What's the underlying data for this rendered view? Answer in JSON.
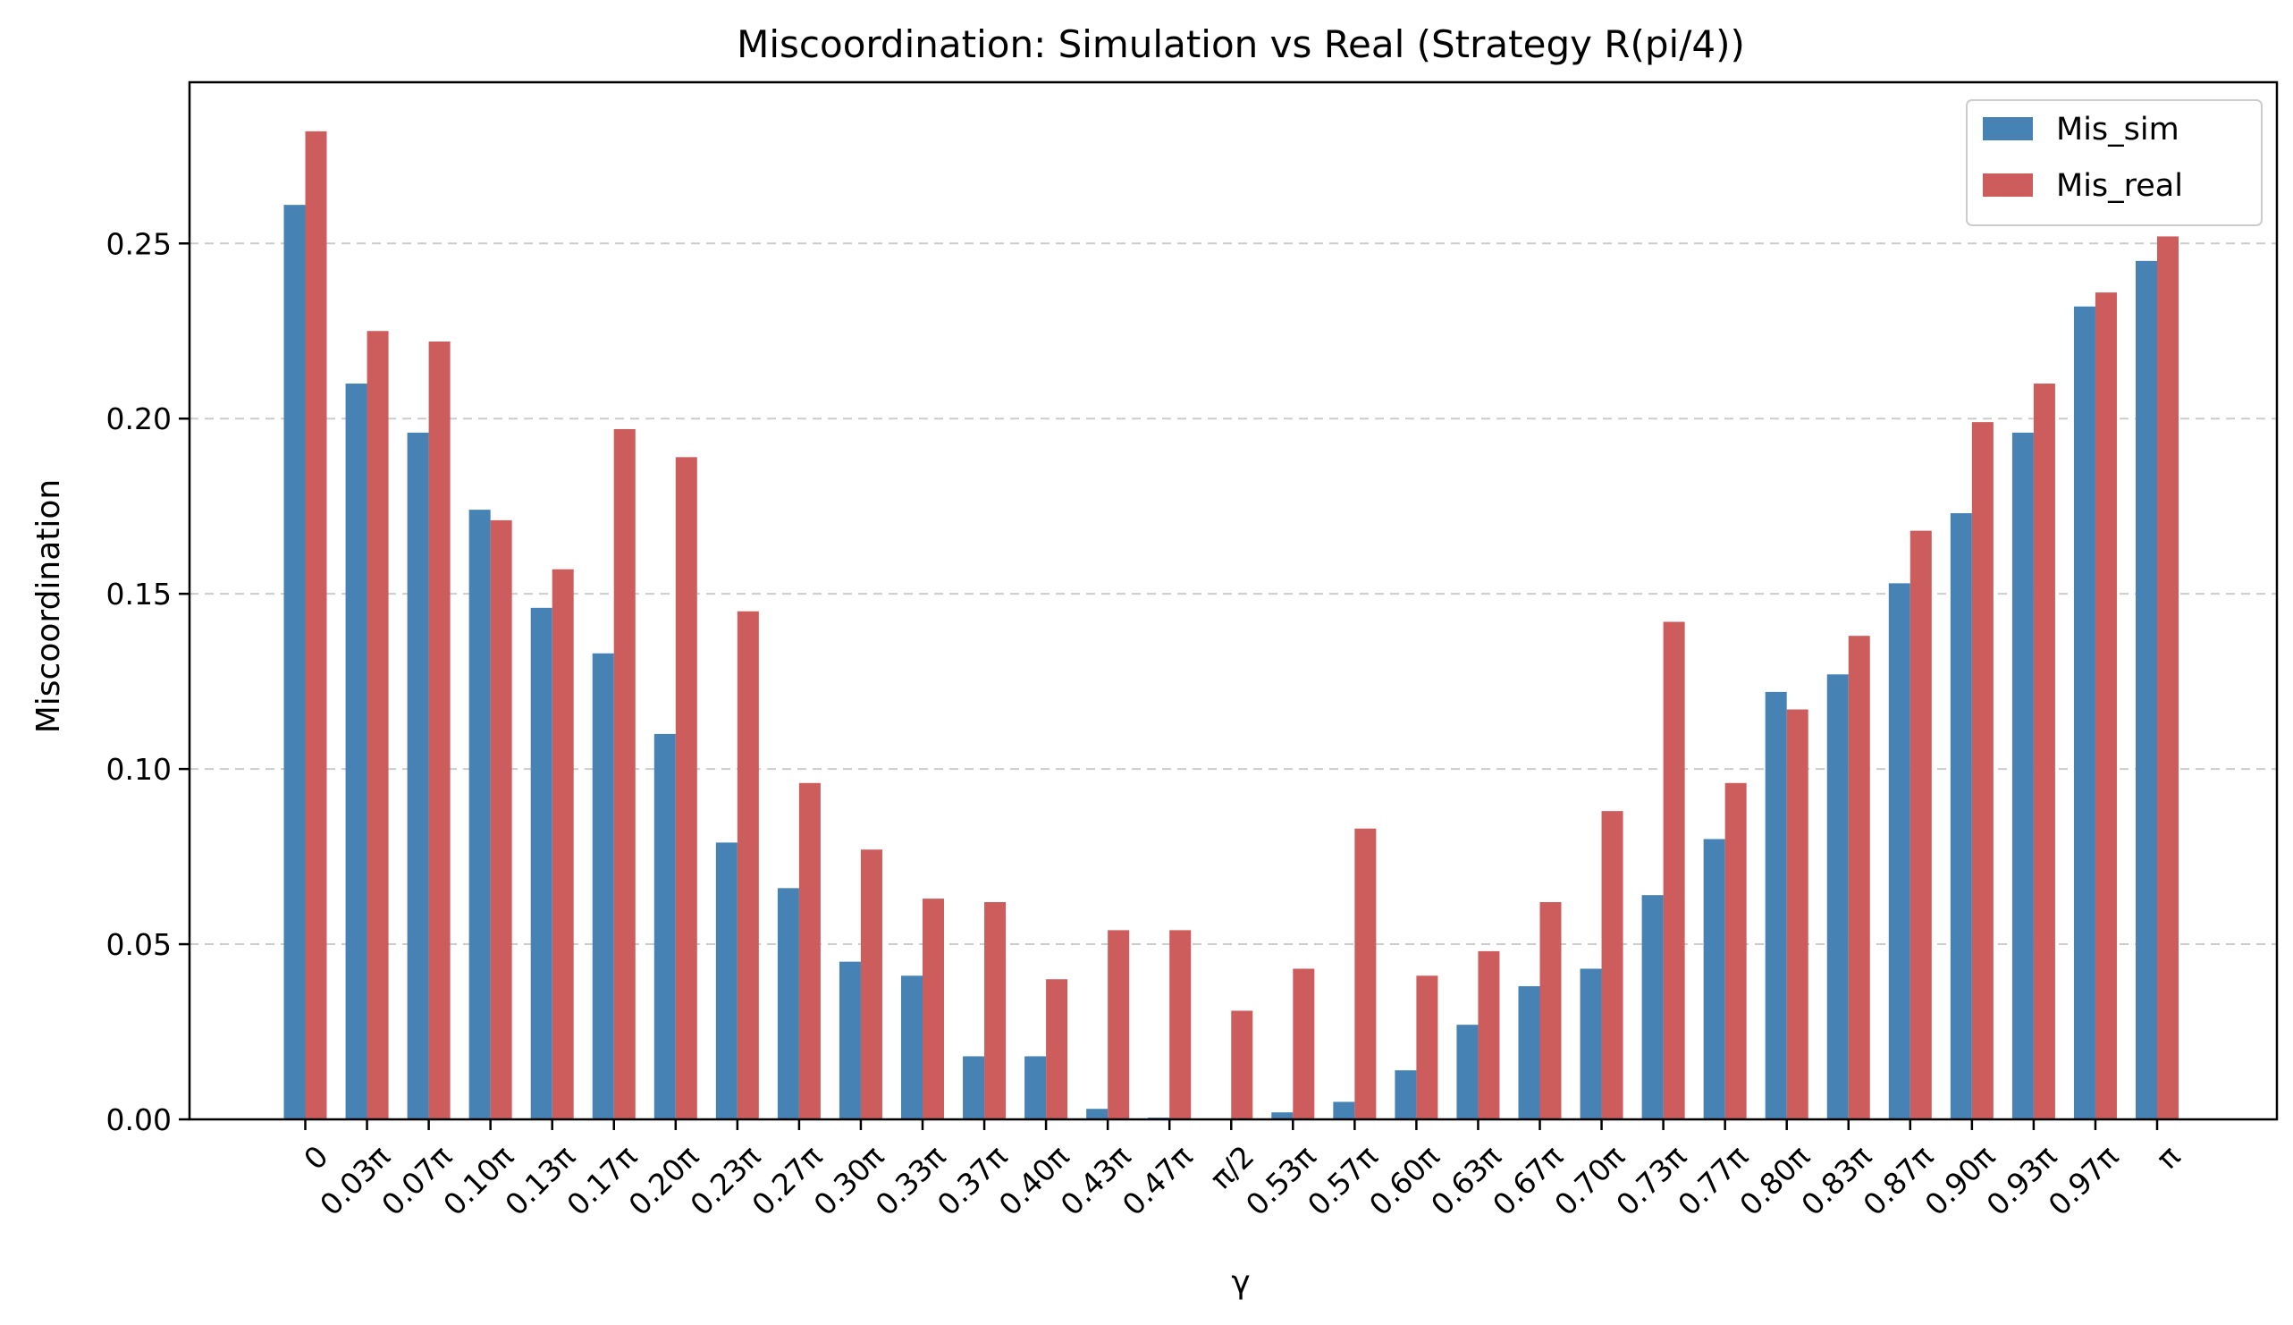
{
  "chart_data": {
    "type": "bar",
    "title": "Miscoordination: Simulation vs Real (Strategy R(pi/4))",
    "xlabel": "γ",
    "ylabel": "Miscoordination",
    "ylim": [
      0,
      0.296
    ],
    "yticks": [
      "0.00",
      "0.05",
      "0.10",
      "0.15",
      "0.20",
      "0.25"
    ],
    "grid": "y-dashed",
    "legend": "top-right",
    "categories": [
      "0",
      "0.03π",
      "0.07π",
      "0.10π",
      "0.13π",
      "0.17π",
      "0.20π",
      "0.23π",
      "0.27π",
      "0.30π",
      "0.33π",
      "0.37π",
      "0.40π",
      "0.43π",
      "0.47π",
      "π/2",
      "0.53π",
      "0.57π",
      "0.60π",
      "0.63π",
      "0.67π",
      "0.70π",
      "0.73π",
      "0.77π",
      "0.80π",
      "0.83π",
      "0.87π",
      "0.90π",
      "0.93π",
      "0.97π",
      "π"
    ],
    "series": [
      {
        "name": "Mis_sim",
        "color": "#4682b4",
        "values": [
          0.261,
          0.21,
          0.196,
          0.174,
          0.146,
          0.133,
          0.11,
          0.079,
          0.066,
          0.045,
          0.041,
          0.018,
          0.018,
          0.003,
          0.0005,
          0.0,
          0.002,
          0.005,
          0.014,
          0.027,
          0.038,
          0.043,
          0.064,
          0.08,
          0.122,
          0.127,
          0.153,
          0.173,
          0.196,
          0.232,
          0.245
        ]
      },
      {
        "name": "Mis_real",
        "color": "#cd5c5c",
        "values": [
          0.282,
          0.225,
          0.222,
          0.171,
          0.157,
          0.197,
          0.189,
          0.145,
          0.096,
          0.077,
          0.063,
          0.062,
          0.04,
          0.054,
          0.054,
          0.031,
          0.043,
          0.083,
          0.041,
          0.048,
          0.062,
          0.088,
          0.142,
          0.096,
          0.117,
          0.138,
          0.168,
          0.199,
          0.21,
          0.236,
          0.252
        ]
      }
    ]
  }
}
